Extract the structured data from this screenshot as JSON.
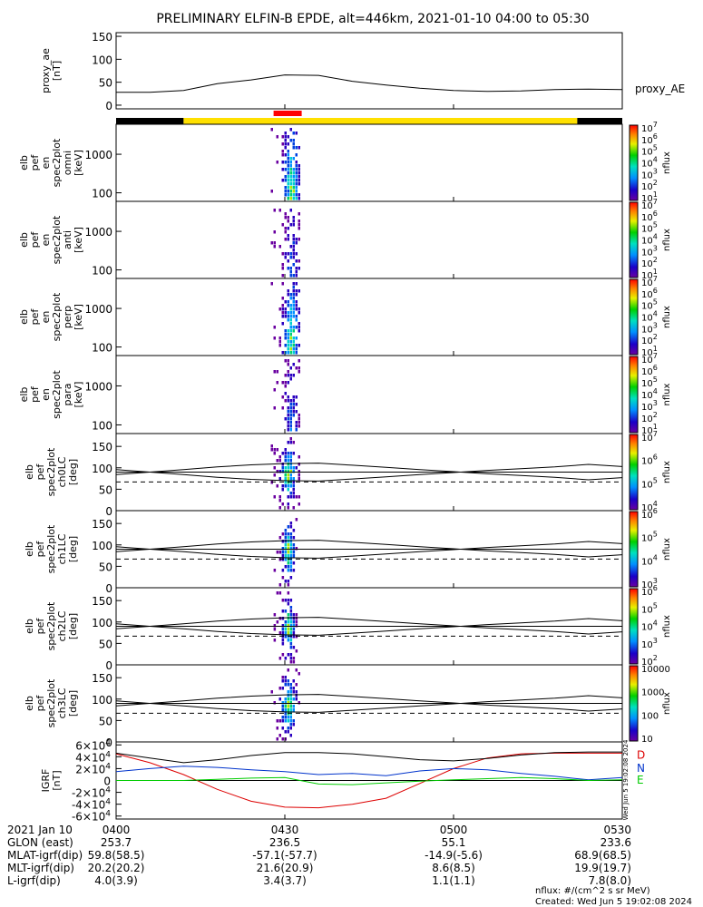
{
  "title": "PRELIMINARY ELFIN-B EPDE, alt=446km, 2021-01-10 04:00 to 05:30",
  "colors": {
    "bar_black": "#000000",
    "bar_yellow": "#ffe000",
    "bar_red": "#ff0000",
    "igrf_d": "#dd0000",
    "igrf_n": "#0033cc",
    "igrf_e": "#00cc00",
    "axes": "#000000"
  },
  "chart_data": [
    {
      "type": "line",
      "name": "proxy_ae",
      "ylabel_lines": [
        "proxy_ae",
        "[nT]"
      ],
      "ylim": [
        -8,
        158
      ],
      "yticks": [
        "0",
        "50",
        "100",
        "150"
      ],
      "series_label": "proxy_AE",
      "x_minutes": [
        0,
        6,
        12,
        18,
        24,
        30,
        36,
        42,
        48,
        54,
        60,
        66,
        72,
        78,
        84,
        90
      ],
      "y": [
        28,
        28,
        32,
        47,
        55,
        66,
        65,
        52,
        44,
        37,
        32,
        30,
        31,
        34,
        35,
        34
      ]
    },
    {
      "type": "heatmap",
      "name": "spectrogram omni",
      "ylabel_lines": [
        "elb",
        "pef",
        "en",
        "spec2plot",
        "omni",
        "[keV]"
      ],
      "yscale": "log",
      "yticks": [
        "100",
        "1000"
      ],
      "colorbar": {
        "label": "nflux",
        "ticks": [
          "10",
          "10",
          "10",
          "10",
          "10",
          "10",
          "10"
        ],
        "exponents": [
          "1",
          "2",
          "3",
          "4",
          "5",
          "6",
          "7"
        ]
      },
      "active_window_minutes": [
        27.5,
        32.5
      ],
      "peak_minutes": 31
    },
    {
      "type": "heatmap",
      "name": "spectrogram anti",
      "ylabel_lines": [
        "elb",
        "pef",
        "en",
        "spec2plot",
        "anti",
        "[keV]"
      ],
      "yscale": "log",
      "yticks": [
        "100",
        "1000"
      ],
      "colorbar": {
        "label": "nflux",
        "ticks": [
          "10",
          "10",
          "10",
          "10",
          "10",
          "10",
          "10"
        ],
        "exponents": [
          "1",
          "2",
          "3",
          "4",
          "5",
          "6",
          "7"
        ]
      },
      "active_window_minutes": [
        27.5,
        32.5
      ],
      "peak_minutes": 31
    },
    {
      "type": "heatmap",
      "name": "spectrogram perp",
      "ylabel_lines": [
        "elb",
        "pef",
        "en",
        "spec2plot",
        "perp",
        "[keV]"
      ],
      "yscale": "log",
      "yticks": [
        "100",
        "1000"
      ],
      "colorbar": {
        "label": "nflux",
        "ticks": [
          "10",
          "10",
          "10",
          "10",
          "10",
          "10",
          "10"
        ],
        "exponents": [
          "1",
          "2",
          "3",
          "4",
          "5",
          "6",
          "7"
        ]
      },
      "active_window_minutes": [
        27.5,
        32.5
      ],
      "peak_minutes": 31
    },
    {
      "type": "heatmap",
      "name": "spectrogram para",
      "ylabel_lines": [
        "elb",
        "pef",
        "en",
        "spec2plot",
        "para",
        "[keV]"
      ],
      "yscale": "log",
      "yticks": [
        "100",
        "1000"
      ],
      "colorbar": {
        "label": "nflux",
        "ticks": [
          "10",
          "10",
          "10",
          "10",
          "10",
          "10",
          "10"
        ],
        "exponents": [
          "1",
          "2",
          "3",
          "4",
          "5",
          "6",
          "7"
        ]
      },
      "active_window_minutes": [
        27.5,
        32.5
      ],
      "peak_minutes": 31
    },
    {
      "type": "heatmap",
      "name": "pitch angle ch0LC",
      "ylabel_lines": [
        "elb",
        "pef",
        "spec2plot",
        "ch0LC",
        "[deg]"
      ],
      "ylim": [
        0,
        180
      ],
      "yticks": [
        "0",
        "50",
        "100",
        "150"
      ],
      "colorbar": {
        "label": "nflux",
        "ticks": [
          "10",
          "10",
          "10",
          "10"
        ],
        "exponents": [
          "4",
          "5",
          "6",
          "7"
        ]
      },
      "active_window_minutes": [
        27.5,
        32.5
      ],
      "peak_minutes": 30.5,
      "losscone_deg": [
        84,
        90,
        96,
        102,
        107,
        110,
        111,
        106,
        101,
        96,
        91,
        86,
        82,
        78,
        72,
        77
      ],
      "antilosscone_deg": [
        96,
        90,
        84,
        78,
        73,
        70,
        69,
        74,
        79,
        84,
        89,
        94,
        98,
        102,
        108,
        103
      ],
      "ninety_deg": 90
    },
    {
      "type": "heatmap",
      "name": "pitch angle ch1LC",
      "ylabel_lines": [
        "elb",
        "pef",
        "spec2plot",
        "ch1LC",
        "[deg]"
      ],
      "ylim": [
        0,
        180
      ],
      "yticks": [
        "0",
        "50",
        "100",
        "150"
      ],
      "colorbar": {
        "label": "nflux",
        "ticks": [
          "10",
          "10",
          "10",
          "10"
        ],
        "exponents": [
          "3",
          "4",
          "5",
          "6"
        ]
      },
      "active_window_minutes": [
        28,
        32
      ],
      "peak_minutes": 30.5,
      "losscone_deg": [
        84,
        90,
        96,
        102,
        107,
        110,
        111,
        106,
        101,
        96,
        91,
        86,
        82,
        78,
        72,
        77
      ],
      "antilosscone_deg": [
        96,
        90,
        84,
        78,
        73,
        70,
        69,
        74,
        79,
        84,
        89,
        94,
        98,
        102,
        108,
        103
      ],
      "ninety_deg": 90
    },
    {
      "type": "heatmap",
      "name": "pitch angle ch2LC",
      "ylabel_lines": [
        "elb",
        "pef",
        "spec2plot",
        "ch2LC",
        "[deg]"
      ],
      "ylim": [
        0,
        180
      ],
      "yticks": [
        "0",
        "50",
        "100",
        "150"
      ],
      "colorbar": {
        "label": "nflux",
        "ticks": [
          "10",
          "10",
          "10",
          "10",
          "10"
        ],
        "exponents": [
          "2",
          "3",
          "4",
          "5",
          "6"
        ]
      },
      "active_window_minutes": [
        28,
        32
      ],
      "peak_minutes": 30.5,
      "losscone_deg": [
        84,
        90,
        96,
        102,
        107,
        110,
        111,
        106,
        101,
        96,
        91,
        86,
        82,
        78,
        72,
        77
      ],
      "antilosscone_deg": [
        96,
        90,
        84,
        78,
        73,
        70,
        69,
        74,
        79,
        84,
        89,
        94,
        98,
        102,
        108,
        103
      ],
      "ninety_deg": 90
    },
    {
      "type": "heatmap",
      "name": "pitch angle ch3LC",
      "ylabel_lines": [
        "elb",
        "pef",
        "spec2plot",
        "ch3LC",
        "[deg]"
      ],
      "ylim": [
        0,
        180
      ],
      "yticks": [
        "0",
        "50",
        "100",
        "150"
      ],
      "colorbar": {
        "label": "nflux",
        "ticks": [
          "10",
          "100",
          "1000",
          "10000"
        ]
      },
      "active_window_minutes": [
        27.5,
        32.5
      ],
      "peak_minutes": 30.5,
      "losscone_deg": [
        84,
        90,
        96,
        102,
        107,
        110,
        111,
        106,
        101,
        96,
        91,
        86,
        82,
        78,
        72,
        77
      ],
      "antilosscone_deg": [
        96,
        90,
        84,
        78,
        73,
        70,
        69,
        74,
        79,
        84,
        89,
        94,
        98,
        102,
        108,
        103
      ],
      "ninety_deg": 90
    },
    {
      "type": "line",
      "name": "IGRF",
      "ylabel_lines": [
        "IGRF",
        "[nT]"
      ],
      "ylim": [
        -65000,
        65000
      ],
      "yticks": [
        "-6×10",
        "-4×10",
        "-2×10",
        "0",
        "2×10",
        "4×10",
        "6×10"
      ],
      "ytick_exponent": "4",
      "x_minutes": [
        0,
        6,
        12,
        18,
        24,
        30,
        36,
        42,
        48,
        54,
        60,
        66,
        72,
        78,
        84,
        90
      ],
      "series": [
        {
          "name": "D",
          "color": "#dd0000",
          "values": [
            45000,
            30000,
            10000,
            -15000,
            -35000,
            -45000,
            -46000,
            -40000,
            -30000,
            -5000,
            20000,
            38000,
            45000,
            46000,
            46000,
            46000
          ]
        },
        {
          "name": "N",
          "color": "#0033cc",
          "values": [
            15000,
            20000,
            24000,
            22000,
            18000,
            15000,
            10000,
            12000,
            8000,
            16000,
            20000,
            18000,
            12000,
            7000,
            1000,
            5000
          ]
        },
        {
          "name": "E",
          "color": "#00cc00",
          "values": [
            0,
            0,
            0,
            2000,
            4000,
            5000,
            -6000,
            -7000,
            -4000,
            -1000,
            1000,
            3000,
            5000,
            3000,
            0,
            1000
          ]
        },
        {
          "name": "total",
          "color": "#000000",
          "values": [
            46000,
            38000,
            30000,
            35000,
            42000,
            47000,
            47000,
            45000,
            40000,
            35000,
            33000,
            37000,
            43000,
            47000,
            48000,
            48000
          ]
        }
      ]
    }
  ],
  "timebar": {
    "segments": [
      {
        "start_minutes": 0,
        "end_minutes": 12,
        "color": "#000000"
      },
      {
        "start_minutes": 12,
        "end_minutes": 82,
        "color": "#ffe000"
      },
      {
        "start_minutes": 82,
        "end_minutes": 90,
        "color": "#000000"
      }
    ],
    "science_zone_minutes": [
      28,
      33
    ]
  },
  "footer": {
    "rows": [
      {
        "label": "2021 Jan 10",
        "values": [
          "0400",
          "0430",
          "0500",
          "0530"
        ]
      },
      {
        "label": "GLON (east)",
        "values": [
          "253.7",
          "236.5",
          "55.1",
          "233.6"
        ]
      },
      {
        "label": "MLAT-igrf(dip)",
        "values": [
          "59.8(58.5)",
          "-57.1(-57.7)",
          "-14.9(-5.6)",
          "68.9(68.5)"
        ]
      },
      {
        "label": "MLT-igrf(dip)",
        "values": [
          "20.2(20.2)",
          "21.6(20.9)",
          "8.6(8.5)",
          "19.9(19.7)"
        ]
      },
      {
        "label": "L-igrf(dip)",
        "values": [
          "4.0(3.9)",
          "3.4(3.7)",
          "1.1(1.1)",
          "7.8(8.0)"
        ]
      }
    ],
    "units_note": "nflux: #/(cm^2 s sr MeV)",
    "created": "Created: Wed Jun  5 19:02:08 2024",
    "side_stamp": "Wed Jun  5 19:02:08 2024"
  }
}
